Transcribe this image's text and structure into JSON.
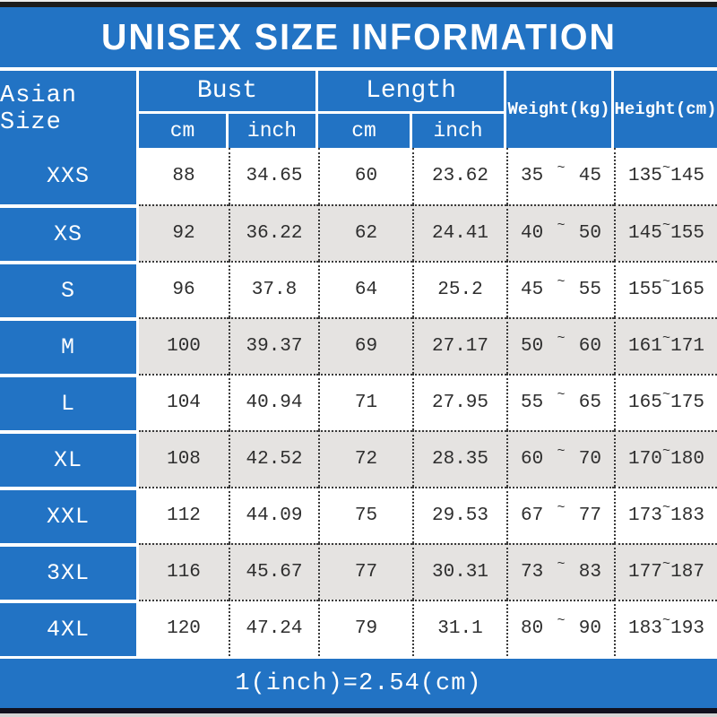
{
  "title": "UNISEX SIZE INFORMATION",
  "table": {
    "size_col_header": "Asian Size",
    "groups": [
      {
        "label": "Bust",
        "sub": [
          "cm",
          "inch"
        ]
      },
      {
        "label": "Length",
        "sub": [
          "cm",
          "inch"
        ]
      }
    ],
    "weight_header": "Weight(kg)",
    "height_header": "Height(cm)",
    "tilde": "~",
    "rows": [
      {
        "size": "XXS",
        "bust_cm": "88",
        "bust_in": "34.65",
        "len_cm": "60",
        "len_in": "23.62",
        "weight": [
          "35",
          "45"
        ],
        "height": [
          "135",
          "145"
        ]
      },
      {
        "size": "XS",
        "bust_cm": "92",
        "bust_in": "36.22",
        "len_cm": "62",
        "len_in": "24.41",
        "weight": [
          "40",
          "50"
        ],
        "height": [
          "145",
          "155"
        ]
      },
      {
        "size": "S",
        "bust_cm": "96",
        "bust_in": "37.8",
        "len_cm": "64",
        "len_in": "25.2",
        "weight": [
          "45",
          "55"
        ],
        "height": [
          "155",
          "165"
        ]
      },
      {
        "size": "M",
        "bust_cm": "100",
        "bust_in": "39.37",
        "len_cm": "69",
        "len_in": "27.17",
        "weight": [
          "50",
          "60"
        ],
        "height": [
          "161",
          "171"
        ]
      },
      {
        "size": "L",
        "bust_cm": "104",
        "bust_in": "40.94",
        "len_cm": "71",
        "len_in": "27.95",
        "weight": [
          "55",
          "65"
        ],
        "height": [
          "165",
          "175"
        ]
      },
      {
        "size": "XL",
        "bust_cm": "108",
        "bust_in": "42.52",
        "len_cm": "72",
        "len_in": "28.35",
        "weight": [
          "60",
          "70"
        ],
        "height": [
          "170",
          "180"
        ]
      },
      {
        "size": "XXL",
        "bust_cm": "112",
        "bust_in": "44.09",
        "len_cm": "75",
        "len_in": "29.53",
        "weight": [
          "67",
          "77"
        ],
        "height": [
          "173",
          "183"
        ]
      },
      {
        "size": "3XL",
        "bust_cm": "116",
        "bust_in": "45.67",
        "len_cm": "77",
        "len_in": "30.31",
        "weight": [
          "73",
          "83"
        ],
        "height": [
          "177",
          "187"
        ]
      },
      {
        "size": "4XL",
        "bust_cm": "120",
        "bust_in": "47.24",
        "len_cm": "79",
        "len_in": "31.1",
        "weight": [
          "80",
          "90"
        ],
        "height": [
          "183",
          "193"
        ]
      }
    ]
  },
  "footer": "1(inch)=2.54(cm)",
  "colors": {
    "blue": "#2273c4",
    "row_alt": "#e5e3e1",
    "ink": "#2e2e2e",
    "navy": "#10101e"
  }
}
